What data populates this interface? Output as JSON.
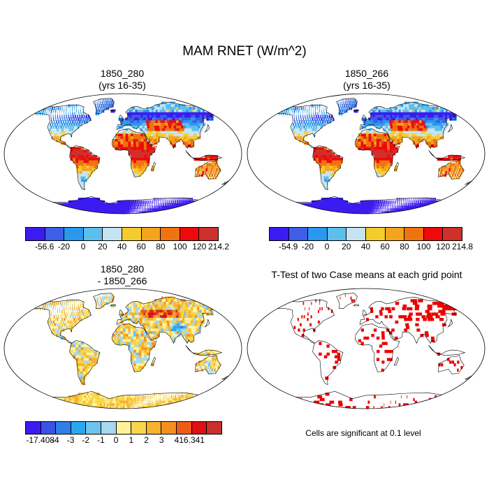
{
  "title": "MAM RNET (W/m^2)",
  "panels": [
    {
      "title_line1": "1850_280",
      "title_line2": "(yrs 16-35)",
      "scheme": "abs"
    },
    {
      "title_line1": "1850_266",
      "title_line2": "(yrs 16-35)",
      "scheme": "abs"
    },
    {
      "title_line1": "1850_280",
      "title_line2": "- 1850_266",
      "scheme": "diff"
    },
    {
      "title_line1": "T-Test of two Case means at each grid point",
      "title_line2": "",
      "scheme": "ttest"
    }
  ],
  "colorbars": {
    "left_top": {
      "colors": [
        "#3b1cf0",
        "#3e5ee6",
        "#2a98ee",
        "#5cbfee",
        "#c5e3f0",
        "#f5cc2e",
        "#f5a41e",
        "#ef7410",
        "#ee0a0a",
        "#d0302c"
      ],
      "labels": [
        "-56.6",
        "-20",
        "0",
        "20",
        "40",
        "60",
        "80",
        "100",
        "120",
        "214.2"
      ]
    },
    "right_top": {
      "colors": [
        "#3b1cf0",
        "#3e5ee6",
        "#2a98ee",
        "#5cbfee",
        "#c5e3f0",
        "#f5cc2e",
        "#f5a41e",
        "#ef7410",
        "#ee0a0a",
        "#d0302c"
      ],
      "labels": [
        "-54.9",
        "-20",
        "0",
        "20",
        "40",
        "60",
        "80",
        "100",
        "120",
        "214.8"
      ]
    },
    "left_bottom": {
      "colors": [
        "#3b1cf0",
        "#3a52e6",
        "#2f7fe6",
        "#2aa8ee",
        "#6ec3ee",
        "#a6d8ee",
        "#fff29a",
        "#f8d64a",
        "#f5b330",
        "#f59020",
        "#f05a18",
        "#e01010",
        "#c8302c"
      ],
      "labels": [
        "-17.408",
        "-4",
        "-3",
        "-2",
        "-1",
        "0",
        "1",
        "2",
        "3",
        "4",
        "16.341"
      ]
    }
  },
  "note": "Cells are significant at 0.1 level"
}
